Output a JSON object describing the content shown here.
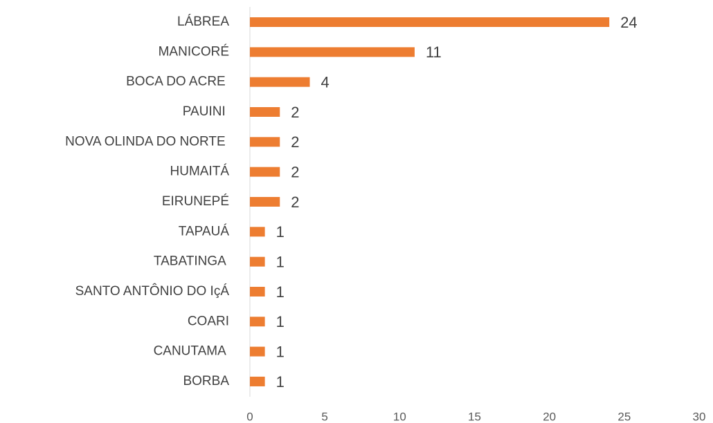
{
  "chart_data": {
    "type": "bar",
    "orientation": "horizontal",
    "categories": [
      "LÁBREA",
      "MANICORÉ",
      "BOCA DO ACRE ",
      "PAUINI ",
      "NOVA OLINDA DO NORTE ",
      "HUMAITÁ",
      "EIRUNEPÉ",
      "TAPAUÁ",
      "TABATINGA ",
      "SANTO ANTÔNIO DO IçÁ",
      "COARI",
      "CANUTAMA ",
      "BORBA"
    ],
    "values": [
      24,
      11,
      4,
      2,
      2,
      2,
      2,
      1,
      1,
      1,
      1,
      1,
      1
    ],
    "color": "#ed7d31",
    "xlim": [
      0,
      30
    ],
    "xticks": [
      0,
      5,
      10,
      15,
      20,
      25,
      30
    ],
    "grid": false
  }
}
